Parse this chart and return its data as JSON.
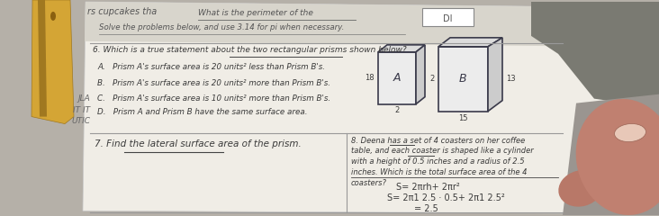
{
  "bg_color": "#b5b0a8",
  "paper_color": "#f0ede6",
  "paper_color2": "#e8e4dc",
  "title_top": "rs cupcakes tha",
  "perimeter_text": "What is the perimeter of the",
  "solve_text": "Solve the problems below, and use 3.14 for pi when necessary.",
  "q6_text": "6. Which is a true statement about the two rectangular prisms shown below?",
  "optA": "A.   Prism A's surface area is 20 units² less than Prism B's.",
  "optB": "B.   Prism A's surface area is 20 units² more than Prism B's.",
  "optC": "C.   Prism A's surface area is 10 units² more than Prism B's.",
  "optD": "D.   Prism A and Prism B have the same surface area.",
  "label_A": "A",
  "label_B": "B",
  "dim18": "18",
  "dim2a": "2",
  "dim2b": "2",
  "dim15": "15",
  "dim13": "13",
  "q7_text": "7. Find the lateral surface area of the prism.",
  "q8_text": "8. Deena has a set of 4 coasters on her coffee\ntable, and each coaster is shaped like a cylinder\nwith a height of 0.5 inches and a radius of 2.5\ninches. Which is the total surface area of the 4\ncoasters?",
  "formula1": "S= 2πrh+ 2πr²",
  "formula2": "S= 2π1 2.5 · 0.5+ 2π1 2.5²",
  "formula3": "= 2.5",
  "left_labels": [
    "JLA",
    "IT IT",
    "UTIC"
  ],
  "pencil_color": "#d4a535",
  "pencil_dark": "#a07820",
  "thumb_color": "#c08070",
  "thumb_dark": "#9a6455",
  "gray_top_right": "#7a7a72",
  "box_text_color": "#3a3a4a",
  "text_color": "#3a3a3a",
  "text_light": "#555555",
  "line_color": "#777777",
  "underline_color": "#444444",
  "grid_color": "#999999"
}
